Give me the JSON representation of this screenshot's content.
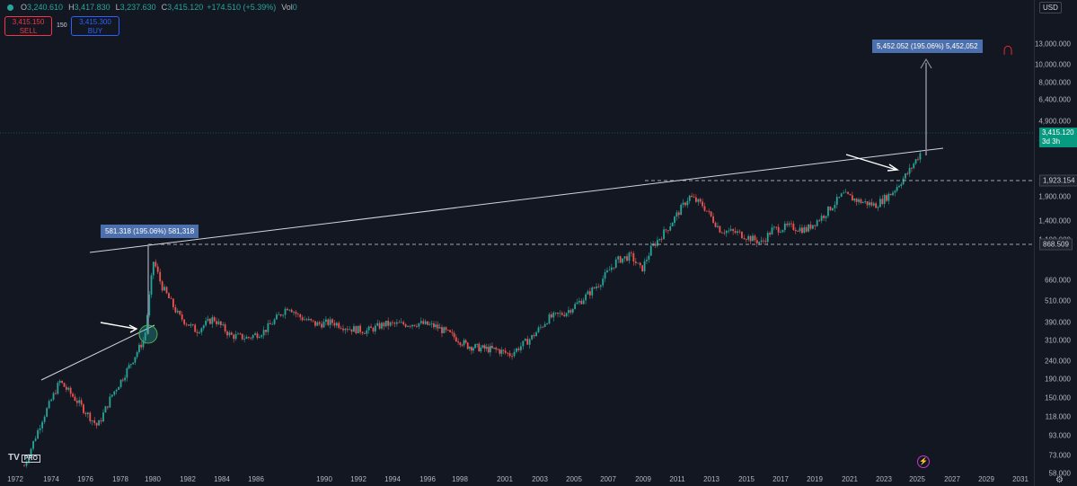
{
  "header": {
    "open": "3,240.610",
    "high": "3,417.830",
    "low": "3,237.630",
    "close": "3,415.120",
    "change": "+174.510 (+5.39%)",
    "vol_label": "Vol",
    "vol_value": "0",
    "sell_price": "3,415.150",
    "sell_label": "SELL",
    "buy_price": "3,415.300",
    "buy_label": "BUY",
    "spread": "150"
  },
  "axis": {
    "currency": "USD",
    "price_ticks": [
      "13,000.000",
      "10,000.000",
      "8,000.000",
      "6,400.000",
      "4,900.000",
      "3,900.000",
      "2,300.000",
      "1,900.000",
      "1,400.000",
      "1,100.000",
      "660.000",
      "510.000",
      "390.000",
      "310.000",
      "240.000",
      "190.000",
      "150.000",
      "118.000",
      "93.000",
      "73.000",
      "58.000"
    ],
    "year_ticks": [
      "1972",
      "1974",
      "1976",
      "1978",
      "1980",
      "1982",
      "1984",
      "1986",
      "1990",
      "1992",
      "1994",
      "1996",
      "1998",
      "2001",
      "2003",
      "2005",
      "2007",
      "2009",
      "2011",
      "2013",
      "2015",
      "2017",
      "2019",
      "2021",
      "2023",
      "2025",
      "2027",
      "2029",
      "2031"
    ],
    "current_price_label": "3,415.120",
    "current_time_label": "3d 3h",
    "level_label_high": "1,923.154",
    "level_label_low": "868.509"
  },
  "annotations": {
    "measure_1980": "581.318 (195.06%) 581,318",
    "measure_2025": "5,452.052 (195.06%) 5,452,052"
  },
  "branding": {
    "logo": "TV",
    "pro": "PRO"
  },
  "icons": [
    "magnet-icon",
    "lightning-icon",
    "settings-icon"
  ],
  "colors": {
    "up": "#26a69a",
    "down": "#ef5350",
    "background": "#131722",
    "measure": "#4c6fae"
  },
  "chart_data": {
    "type": "candlestick",
    "scale": "log",
    "ylim": [
      58,
      13000
    ],
    "xlim": [
      "1972",
      "2031"
    ],
    "series": [
      {
        "x": [
          1972.5,
          1973.5,
          1974.5,
          1975.5,
          1976.7,
          1977.5,
          1978.5,
          1979.5,
          1980.05,
          1980.5,
          1981.5,
          1982.5,
          1983.5,
          1984.5,
          1985.5,
          1986.5,
          1987.9,
          1988.5,
          1989.5,
          1990.5,
          1991.5,
          1992.5,
          1993.5,
          1994.5,
          1995.5,
          1996.5,
          1997.5,
          1998.5,
          1999.5,
          2000.5,
          2001.3,
          2002.5,
          2003.5,
          2004.5,
          2005.5,
          2006.5,
          2007.5,
          2008.3,
          2008.9,
          2009.5,
          2010.5,
          2011.7,
          2012.5,
          2013.5,
          2014.5,
          2015.9,
          2016.5,
          2017.5,
          2018.5,
          2019.5,
          2020.6,
          2021.5,
          2022.5,
          2023.5,
          2024.5,
          2025.3
        ],
        "close": [
          64,
          115,
          185,
          145,
          105,
          155,
          220,
          320,
          850,
          620,
          420,
          350,
          410,
          330,
          320,
          350,
          480,
          420,
          380,
          390,
          360,
          350,
          380,
          380,
          385,
          370,
          330,
          290,
          280,
          275,
          260,
          320,
          410,
          440,
          520,
          640,
          850,
          900,
          750,
          1000,
          1300,
          1900,
          1700,
          1250,
          1200,
          1060,
          1250,
          1300,
          1250,
          1500,
          1950,
          1800,
          1700,
          2000,
          2600,
          3415.12
        ]
      }
    ],
    "annotations": [
      {
        "text": "581.318 (195.06%) 581,318",
        "x": 1980.0
      },
      {
        "text": "5,452.052 (195.06%) 5,452,052",
        "x": 2025.3
      }
    ],
    "horizontal_levels": [
      1923.154,
      868.509
    ],
    "current_price": 3415.12,
    "grid": false
  }
}
